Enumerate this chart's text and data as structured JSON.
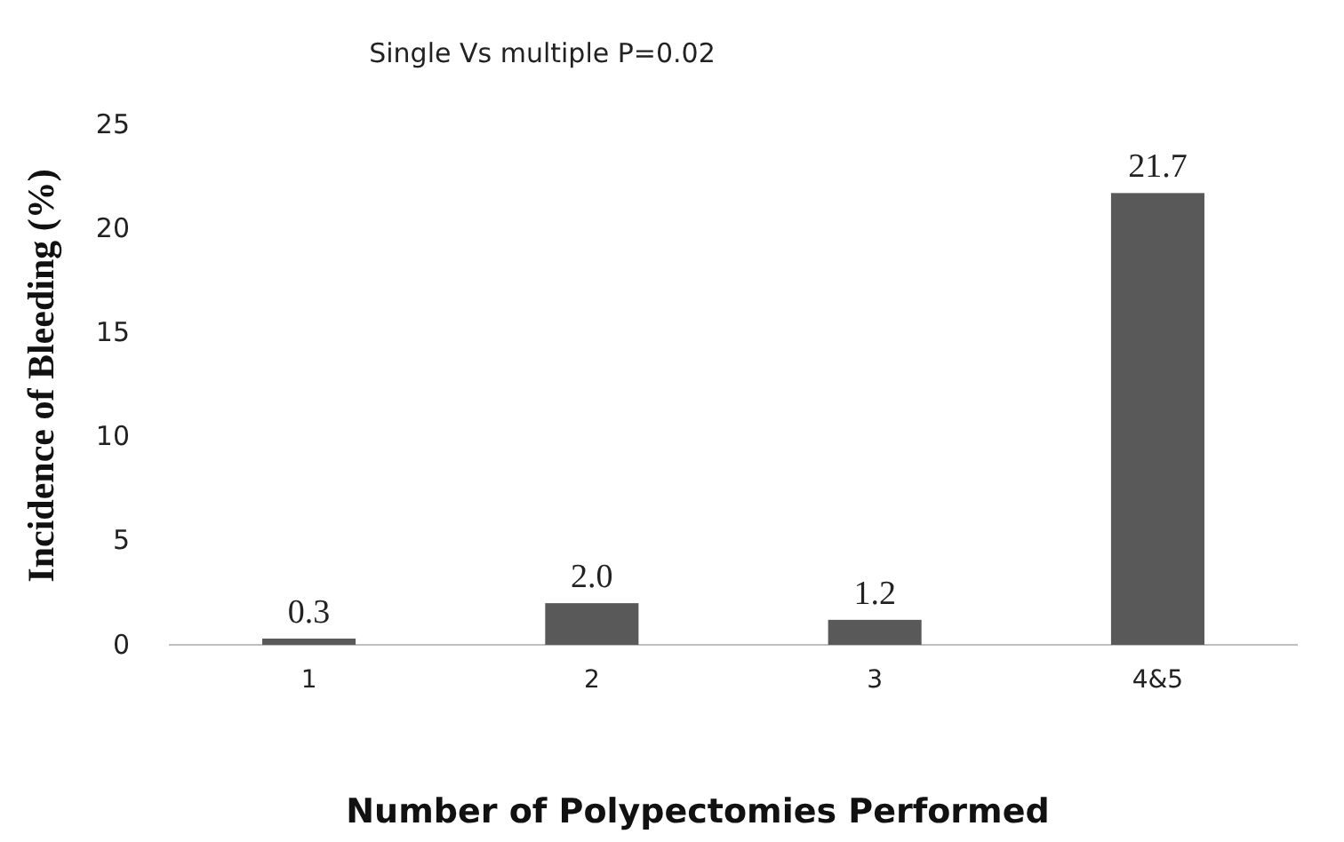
{
  "chart_data": {
    "type": "bar",
    "title": "Single Vs multiple P=0.02",
    "xlabel": "Number of Polypectomies Performed",
    "ylabel": "Incidence of Bleeding (%)",
    "categories": [
      "1",
      "2",
      "3",
      "4&5"
    ],
    "values": [
      0.3,
      2.0,
      1.2,
      21.7
    ],
    "value_labels": [
      "0.3",
      "2.0",
      "1.2",
      "21.7"
    ],
    "color": "#595959",
    "ylim": [
      0,
      25
    ],
    "yticks": [
      0,
      5,
      10,
      15,
      20,
      25
    ],
    "grid": false
  }
}
